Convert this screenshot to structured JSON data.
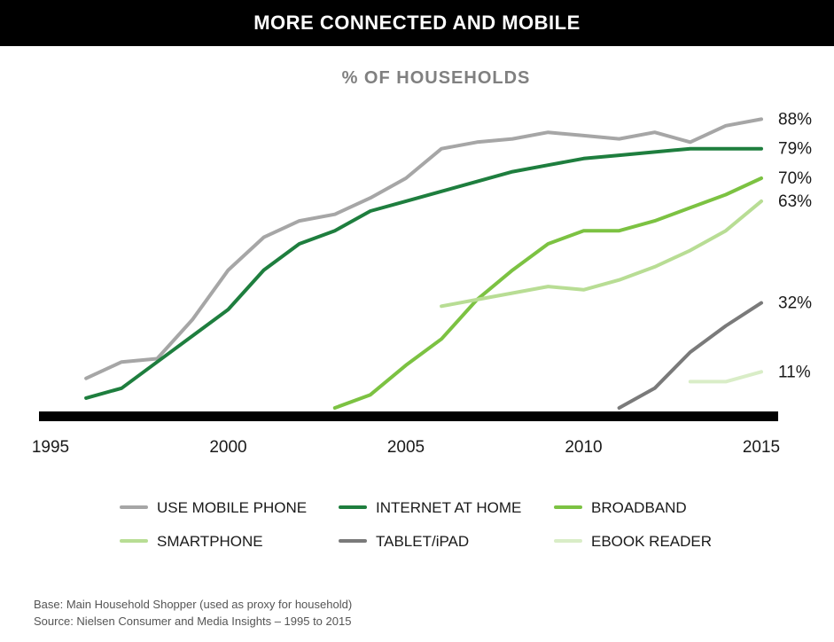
{
  "header": {
    "title": "MORE CONNECTED AND MOBILE"
  },
  "chart_data": {
    "type": "line",
    "title": "% OF HOUSEHOLDS",
    "xlabel": "",
    "ylabel": "",
    "xlim": [
      1995,
      2015
    ],
    "ylim": [
      0,
      100
    ],
    "x_ticks": [
      "1995",
      "2000",
      "2005",
      "2010",
      "2015"
    ],
    "grid": false,
    "legend_position": "bottom",
    "series": [
      {
        "name": "USE MOBILE PHONE",
        "color": "#a6a6a6",
        "x": [
          1996,
          1997,
          1998,
          1999,
          2000,
          2001,
          2002,
          2003,
          2004,
          2005,
          2006,
          2007,
          2008,
          2009,
          2010,
          2011,
          2012,
          2013,
          2014,
          2015
        ],
        "values": [
          9,
          14,
          15,
          27,
          42,
          52,
          57,
          59,
          64,
          70,
          79,
          81,
          82,
          84,
          83,
          82,
          84,
          81,
          86,
          88
        ],
        "end_label": "88%"
      },
      {
        "name": "INTERNET AT HOME",
        "color": "#1e7e3e",
        "x": [
          1996,
          1997,
          1998,
          1999,
          2000,
          2001,
          2002,
          2003,
          2004,
          2005,
          2006,
          2007,
          2008,
          2009,
          2010,
          2011,
          2012,
          2013,
          2014,
          2015
        ],
        "values": [
          3,
          6,
          14,
          22,
          30,
          42,
          50,
          54,
          60,
          63,
          66,
          69,
          72,
          74,
          76,
          77,
          78,
          79,
          79,
          79
        ],
        "end_label": "79%"
      },
      {
        "name": "BROADBAND",
        "color": "#7cc242",
        "x": [
          2003,
          2004,
          2005,
          2006,
          2007,
          2008,
          2009,
          2010,
          2011,
          2012,
          2013,
          2014,
          2015
        ],
        "values": [
          0,
          4,
          13,
          21,
          33,
          42,
          50,
          54,
          54,
          57,
          61,
          65,
          70
        ],
        "end_label": "70%"
      },
      {
        "name": "SMARTPHONE",
        "color": "#b8dd94",
        "x": [
          2006,
          2007,
          2008,
          2009,
          2010,
          2011,
          2012,
          2013,
          2014,
          2015
        ],
        "values": [
          31,
          33,
          35,
          37,
          36,
          39,
          43,
          48,
          54,
          63
        ],
        "end_label": "63%"
      },
      {
        "name": "TABLET/iPAD",
        "color": "#7a7a7a",
        "x": [
          2011,
          2012,
          2013,
          2014,
          2015
        ],
        "values": [
          0,
          6,
          17,
          25,
          32
        ],
        "end_label": "32%"
      },
      {
        "name": "EBOOK READER",
        "color": "#d9edc7",
        "x": [
          2013,
          2014,
          2015
        ],
        "values": [
          8,
          8,
          11
        ],
        "end_label": "11%"
      }
    ]
  },
  "footer": {
    "base": "Base: Main Household Shopper (used as proxy for household)",
    "source": "Source: Nielsen Consumer and Media Insights – 1995 to 2015"
  }
}
